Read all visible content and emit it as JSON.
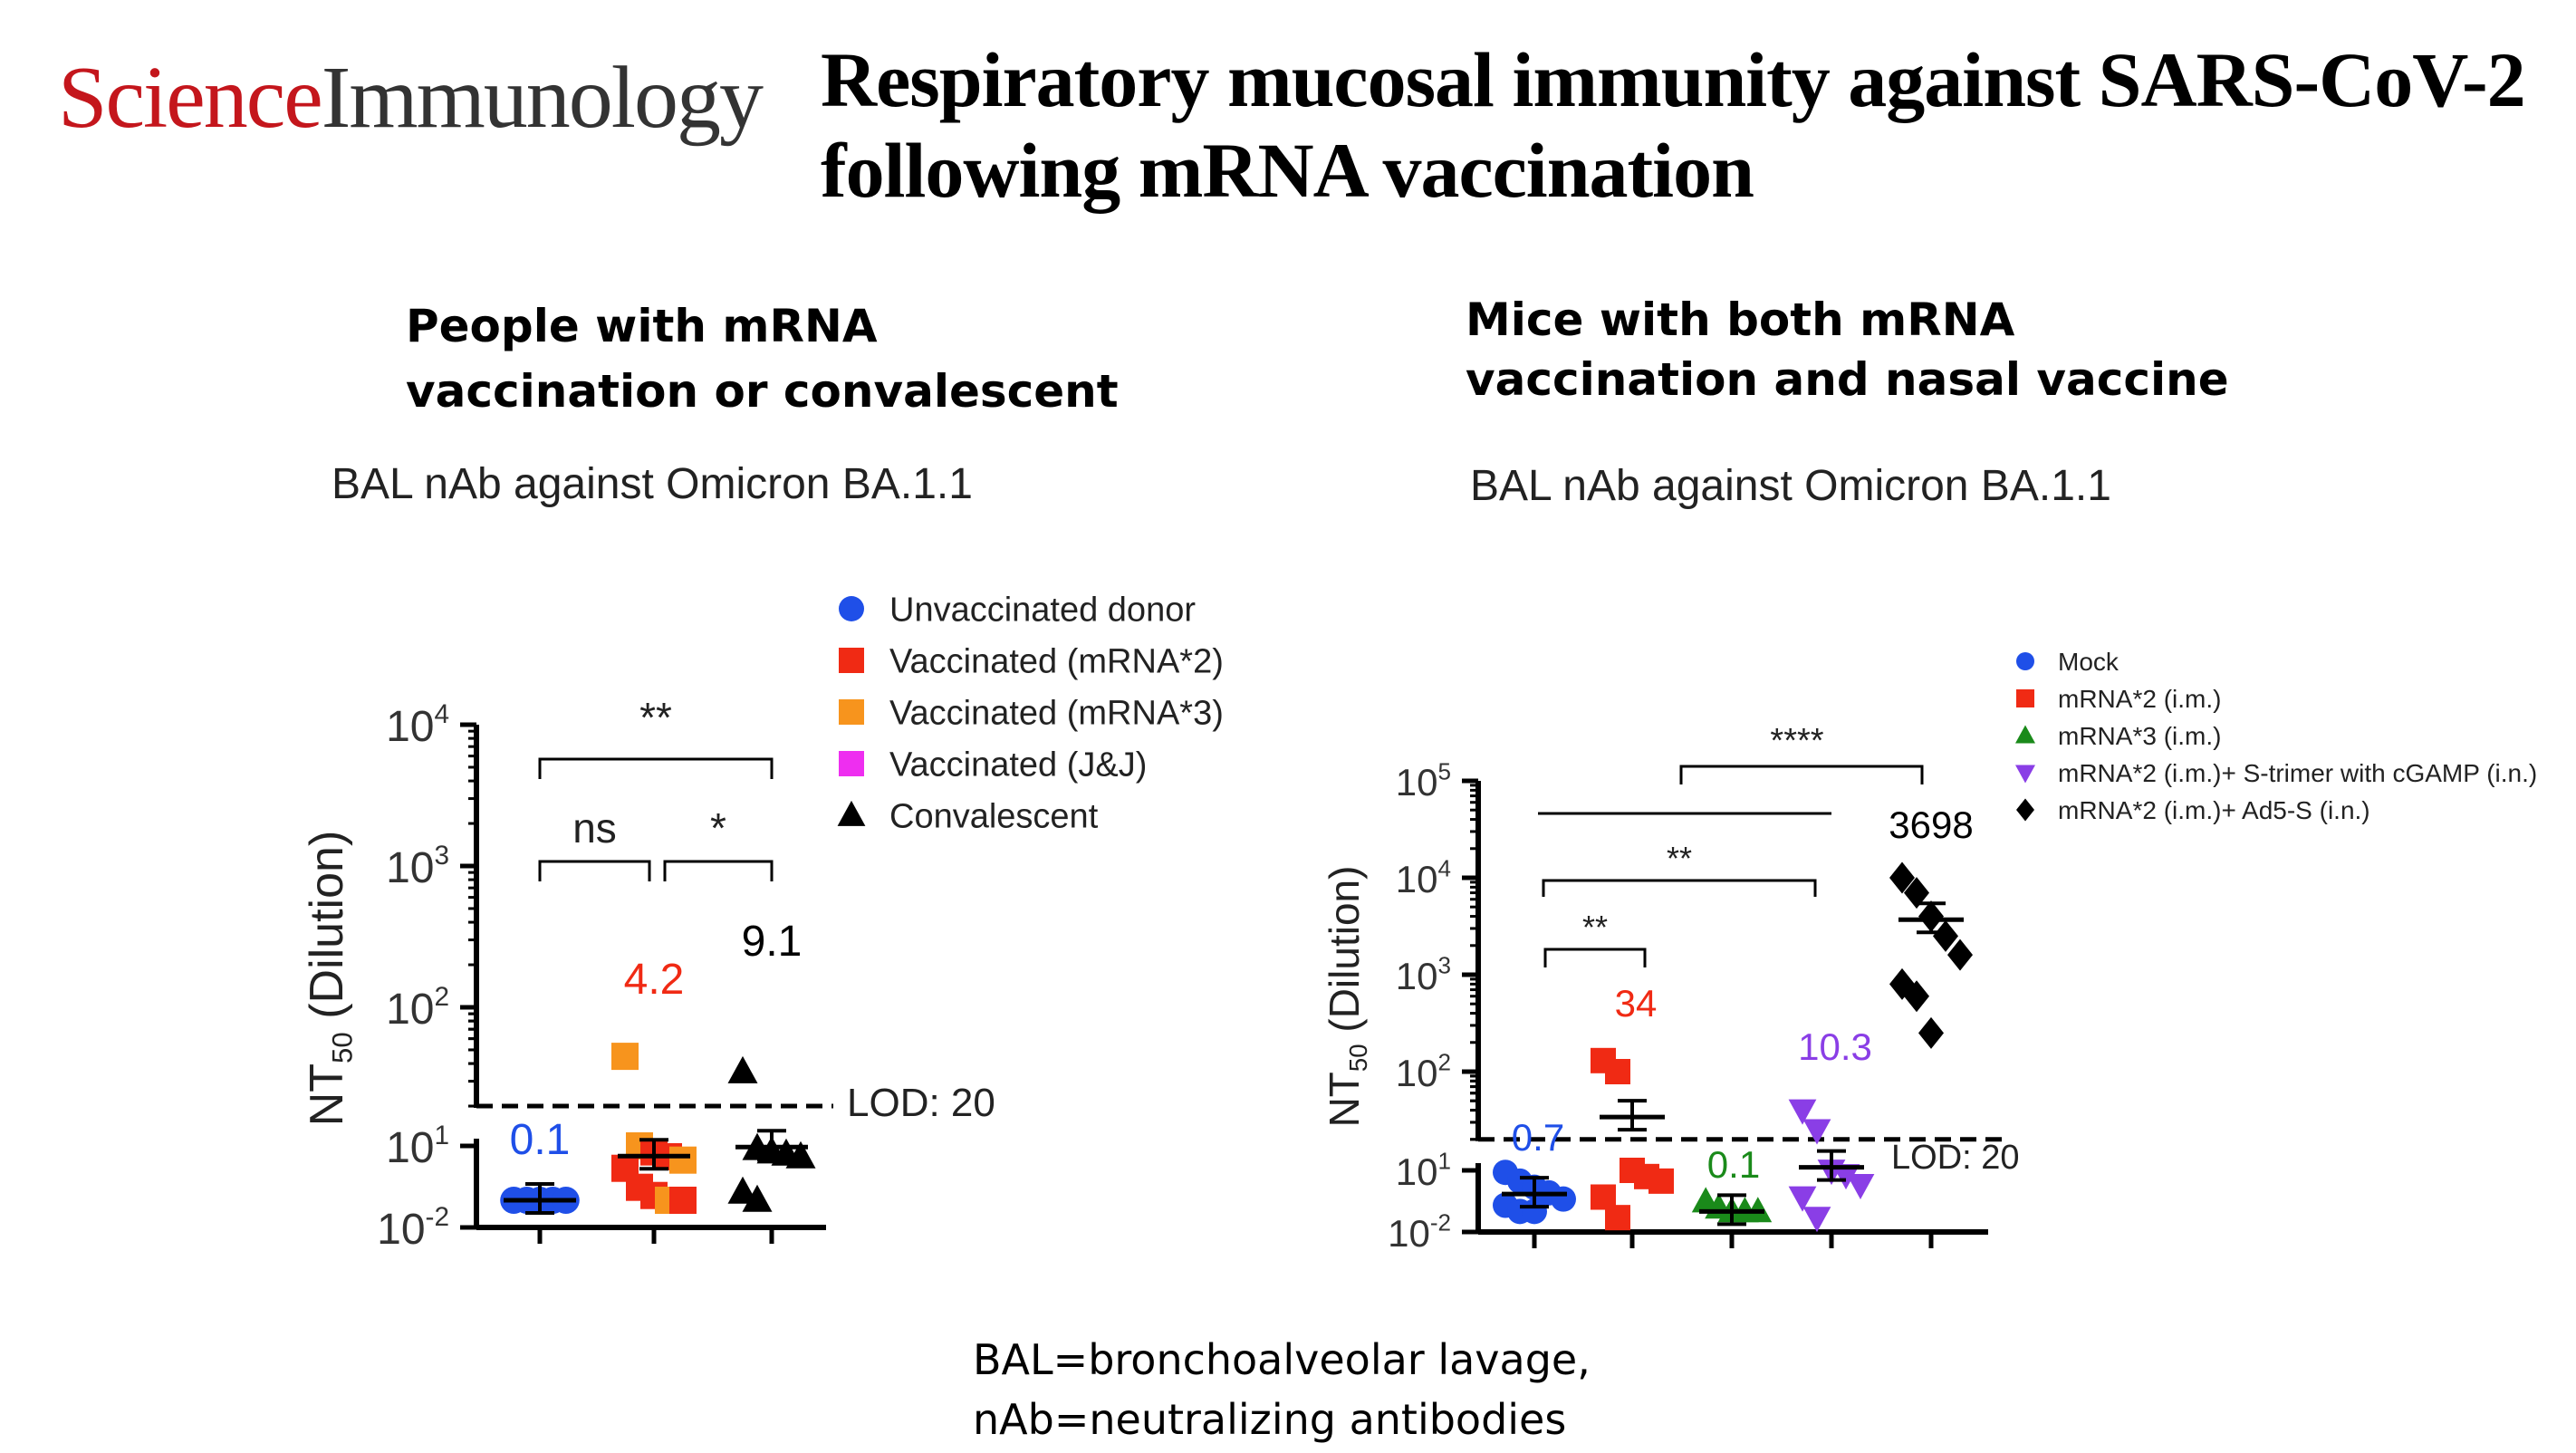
{
  "header": {
    "logo_science": "Science",
    "logo_immunology": "Immunology",
    "title_line1": "Respiratory mucosal immunity against SARS-CoV-2",
    "title_line2": "following mRNA vaccination"
  },
  "left_panel": {
    "subtitle_line1": "People with mRNA",
    "subtitle_line2": "vaccination or convalescent"
  },
  "right_panel": {
    "subtitle_line1": "Mice with both mRNA",
    "subtitle_line2": "vaccination and nasal vaccine"
  },
  "footnote": {
    "line1": "BAL=bronchoalveolar lavage,",
    "line2": "nAb=neutralizing antibodies"
  },
  "colors": {
    "blue": "#1f4fe8",
    "red": "#f02a14",
    "orange": "#f7941d",
    "magenta": "#ee2ef0",
    "black": "#000000",
    "green": "#1a8a1a",
    "purple": "#8a3ee6"
  },
  "chart_data": [
    {
      "type": "scatter",
      "title": "BAL nAb against Omicron BA.1.1",
      "ylabel_main": "NT",
      "ylabel_sub": "50",
      "ylabel_rest": " (Dilution)",
      "yticks": [
        {
          "base": "10",
          "exp": "4",
          "value": 10000
        },
        {
          "base": "10",
          "exp": "3",
          "value": 1000
        },
        {
          "base": "10",
          "exp": "2",
          "value": 100
        },
        {
          "base": "10",
          "exp": "1",
          "value": 10
        },
        {
          "base": "10",
          "exp": "-2",
          "value": 0.01
        }
      ],
      "lod_label": "LOD: 20",
      "lod": 20,
      "legend": [
        {
          "label": "Unvaccinated donor",
          "marker": "circle",
          "color": "blue"
        },
        {
          "label": "Vaccinated (mRNA*2)",
          "marker": "square",
          "color": "red"
        },
        {
          "label": "Vaccinated (mRNA*3)",
          "marker": "square",
          "color": "orange"
        },
        {
          "label": "Vaccinated (J&J)",
          "marker": "square",
          "color": "magenta"
        },
        {
          "label": "Convalescent",
          "marker": "triangle",
          "color": "black"
        }
      ],
      "groups": [
        {
          "name": "Unvaccinated donor",
          "mean_label": "0.1",
          "mean": 0.1,
          "color": "blue",
          "points": [
            {
              "v": 0.1,
              "c": "blue",
              "m": "circle"
            },
            {
              "v": 0.1,
              "c": "blue",
              "m": "circle"
            },
            {
              "v": 0.1,
              "c": "blue",
              "m": "circle"
            },
            {
              "v": 0.1,
              "c": "blue",
              "m": "circle"
            },
            {
              "v": 0.1,
              "c": "blue",
              "m": "circle"
            }
          ]
        },
        {
          "name": "Vaccinated",
          "mean_label": "4.2",
          "mean": 4.2,
          "color": "red",
          "points": [
            {
              "v": 45,
              "c": "orange",
              "m": "square"
            },
            {
              "v": 10,
              "c": "orange",
              "m": "square"
            },
            {
              "v": 6,
              "c": "red",
              "m": "square"
            },
            {
              "v": 4,
              "c": "red",
              "m": "square"
            },
            {
              "v": 3,
              "c": "orange",
              "m": "square"
            },
            {
              "v": 1.5,
              "c": "red",
              "m": "square"
            },
            {
              "v": 0.3,
              "c": "red",
              "m": "square"
            },
            {
              "v": 0.15,
              "c": "red",
              "m": "square"
            },
            {
              "v": 0.1,
              "c": "orange",
              "m": "square"
            },
            {
              "v": 0.1,
              "c": "red",
              "m": "square"
            }
          ]
        },
        {
          "name": "Convalescent",
          "mean_label": "9.1",
          "mean": 9.1,
          "color": "black",
          "points": [
            {
              "v": 35,
              "c": "black",
              "m": "triangle"
            },
            {
              "v": 8,
              "c": "black",
              "m": "triangle"
            },
            {
              "v": 6,
              "c": "black",
              "m": "triangle"
            },
            {
              "v": 5,
              "c": "black",
              "m": "triangle"
            },
            {
              "v": 4,
              "c": "black",
              "m": "triangle"
            },
            {
              "v": 0.2,
              "c": "black",
              "m": "triangle"
            },
            {
              "v": 0.1,
              "c": "black",
              "m": "triangle"
            }
          ]
        }
      ],
      "significance": [
        {
          "from": 0,
          "to": 2,
          "label": "**"
        },
        {
          "from": 0,
          "to": 1,
          "label": "ns"
        },
        {
          "from": 1,
          "to": 2,
          "label": "*"
        }
      ]
    },
    {
      "type": "scatter",
      "title": "BAL nAb against Omicron BA.1.1",
      "ylabel_main": "NT",
      "ylabel_sub": "50",
      "ylabel_rest": " (Dilution)",
      "yticks": [
        {
          "base": "10",
          "exp": "5",
          "value": 100000
        },
        {
          "base": "10",
          "exp": "4",
          "value": 10000
        },
        {
          "base": "10",
          "exp": "3",
          "value": 1000
        },
        {
          "base": "10",
          "exp": "2",
          "value": 100
        },
        {
          "base": "10",
          "exp": "1",
          "value": 10
        },
        {
          "base": "10",
          "exp": "-2",
          "value": 0.01
        }
      ],
      "lod_label": "LOD: 20",
      "lod": 20,
      "legend": [
        {
          "label": "Mock",
          "marker": "circle",
          "color": "blue"
        },
        {
          "label": "mRNA*2 (i.m.)",
          "marker": "square",
          "color": "red"
        },
        {
          "label": "mRNA*3 (i.m.)",
          "marker": "triangle",
          "color": "green"
        },
        {
          "label": "mRNA*2 (i.m.)+ S-trimer with cGAMP (i.n.)",
          "marker": "triangle-down",
          "color": "purple"
        },
        {
          "label": "mRNA*2 (i.m.)+ Ad5-S (i.n.)",
          "marker": "diamond",
          "color": "black"
        }
      ],
      "groups": [
        {
          "name": "Mock",
          "mean_label": "0.7",
          "mean": 0.7,
          "color": "blue",
          "points": [
            {
              "v": 8,
              "c": "blue",
              "m": "circle"
            },
            {
              "v": 3,
              "c": "blue",
              "m": "circle"
            },
            {
              "v": 1.5,
              "c": "blue",
              "m": "circle"
            },
            {
              "v": 0.8,
              "c": "blue",
              "m": "circle"
            },
            {
              "v": 0.4,
              "c": "blue",
              "m": "circle"
            },
            {
              "v": 0.2,
              "c": "blue",
              "m": "circle"
            },
            {
              "v": 0.1,
              "c": "blue",
              "m": "circle"
            },
            {
              "v": 0.1,
              "c": "blue",
              "m": "circle"
            }
          ]
        },
        {
          "name": "mRNA*2 (i.m.)",
          "mean_label": "34",
          "mean": 34,
          "color": "red",
          "points": [
            {
              "v": 130,
              "c": "red",
              "m": "square"
            },
            {
              "v": 100,
              "c": "red",
              "m": "square"
            },
            {
              "v": 10,
              "c": "red",
              "m": "square"
            },
            {
              "v": 5,
              "c": "red",
              "m": "square"
            },
            {
              "v": 3,
              "c": "red",
              "m": "square"
            },
            {
              "v": 0.5,
              "c": "red",
              "m": "square"
            },
            {
              "v": 0.05,
              "c": "red",
              "m": "square"
            }
          ]
        },
        {
          "name": "mRNA*3 (i.m.)",
          "mean_label": "0.1",
          "mean": 0.1,
          "color": "green",
          "points": [
            {
              "v": 0.3,
              "c": "green",
              "m": "triangle"
            },
            {
              "v": 0.15,
              "c": "green",
              "m": "triangle"
            },
            {
              "v": 0.1,
              "c": "green",
              "m": "triangle"
            },
            {
              "v": 0.1,
              "c": "green",
              "m": "triangle"
            },
            {
              "v": 0.1,
              "c": "green",
              "m": "triangle"
            }
          ]
        },
        {
          "name": "mRNA*2 (i.m.)+ S-trimer with cGAMP (i.n.)",
          "mean_label": "10.3",
          "mean": 10.3,
          "color": "purple",
          "points": [
            {
              "v": 40,
              "c": "purple",
              "m": "triangle-down"
            },
            {
              "v": 25,
              "c": "purple",
              "m": "triangle-down"
            },
            {
              "v": 10,
              "c": "purple",
              "m": "triangle-down"
            },
            {
              "v": 6,
              "c": "purple",
              "m": "triangle-down"
            },
            {
              "v": 2,
              "c": "purple",
              "m": "triangle-down"
            },
            {
              "v": 0.5,
              "c": "purple",
              "m": "triangle-down"
            },
            {
              "v": 0.05,
              "c": "purple",
              "m": "triangle-down"
            }
          ]
        },
        {
          "name": "mRNA*2 (i.m.)+ Ad5-S (i.n.)",
          "mean_label": "3698",
          "mean": 3698,
          "color": "black",
          "points": [
            {
              "v": 10000,
              "c": "black",
              "m": "diamond"
            },
            {
              "v": 7000,
              "c": "black",
              "m": "diamond"
            },
            {
              "v": 4000,
              "c": "black",
              "m": "diamond"
            },
            {
              "v": 2500,
              "c": "black",
              "m": "diamond"
            },
            {
              "v": 1600,
              "c": "black",
              "m": "diamond"
            },
            {
              "v": 800,
              "c": "black",
              "m": "diamond"
            },
            {
              "v": 600,
              "c": "black",
              "m": "diamond"
            },
            {
              "v": 250,
              "c": "black",
              "m": "diamond"
            }
          ]
        }
      ],
      "significance": [
        {
          "from": 0,
          "to": 4,
          "label": "****"
        },
        {
          "from": 0,
          "to": 3,
          "label": "**"
        },
        {
          "from": 0,
          "to": 1,
          "label": "**"
        }
      ]
    }
  ]
}
